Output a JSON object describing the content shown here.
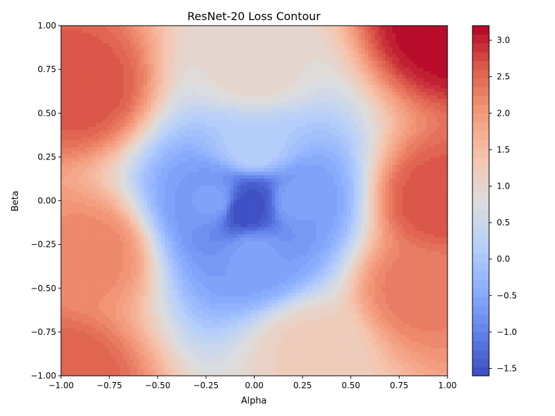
{
  "chart_data": {
    "type": "heatmap",
    "subtype": "filled-contour",
    "title": "ResNet-20 Loss Contour",
    "xlabel": "Alpha",
    "ylabel": "Beta",
    "xlim": [
      -1.0,
      1.0
    ],
    "ylim": [
      -1.0,
      1.0
    ],
    "x_ticks": [
      -1.0,
      -0.75,
      -0.5,
      -0.25,
      0.0,
      0.25,
      0.5,
      0.75,
      1.0
    ],
    "y_ticks": [
      -1.0,
      -0.75,
      -0.5,
      -0.25,
      0.0,
      0.25,
      0.5,
      0.75,
      1.0
    ],
    "x_tick_labels": [
      "−1.00",
      "−0.75",
      "−0.50",
      "−0.25",
      "0.00",
      "0.25",
      "0.50",
      "0.75",
      "1.00"
    ],
    "y_tick_labels": [
      "−1.00",
      "−0.75",
      "−0.50",
      "−0.25",
      "0.00",
      "0.25",
      "0.50",
      "0.75",
      "1.00"
    ],
    "colorbar": {
      "colormap": "coolwarm",
      "range": [
        -1.6,
        3.2
      ],
      "ticks": [
        -1.5,
        -1.0,
        -0.5,
        0.0,
        0.5,
        1.0,
        1.5,
        2.0,
        2.5,
        3.0
      ],
      "tick_labels": [
        "−1.5",
        "−1.0",
        "−0.5",
        "0.0",
        "0.5",
        "1.0",
        "1.5",
        "2.0",
        "2.5",
        "3.0"
      ]
    },
    "grid": false,
    "minimum": {
      "x": -0.05,
      "y": -0.05,
      "value": -1.6
    },
    "maximum": {
      "x": 1.0,
      "y": 1.0,
      "value": 3.2
    },
    "surface_samples": [
      {
        "x": -0.05,
        "y": -0.05,
        "value": -1.6
      },
      {
        "x": 0.0,
        "y": 0.0,
        "value": -1.5
      },
      {
        "x": 0.2,
        "y": 0.0,
        "value": -0.6
      },
      {
        "x": -0.2,
        "y": 0.0,
        "value": -0.6
      },
      {
        "x": 0.0,
        "y": 0.3,
        "value": 0.2
      },
      {
        "x": 0.0,
        "y": -0.3,
        "value": -0.6
      },
      {
        "x": 0.0,
        "y": 0.75,
        "value": 1.0
      },
      {
        "x": -0.9,
        "y": 0.65,
        "value": 2.7
      },
      {
        "x": 0.95,
        "y": 0.0,
        "value": 2.7
      },
      {
        "x": 1.0,
        "y": 1.0,
        "value": 3.2
      },
      {
        "x": -1.0,
        "y": -1.0,
        "value": 2.6
      },
      {
        "x": 0.85,
        "y": -0.5,
        "value": 2.3
      },
      {
        "x": -0.85,
        "y": -0.3,
        "value": 2.2
      },
      {
        "x": 0.3,
        "y": -0.85,
        "value": 1.2
      }
    ]
  }
}
